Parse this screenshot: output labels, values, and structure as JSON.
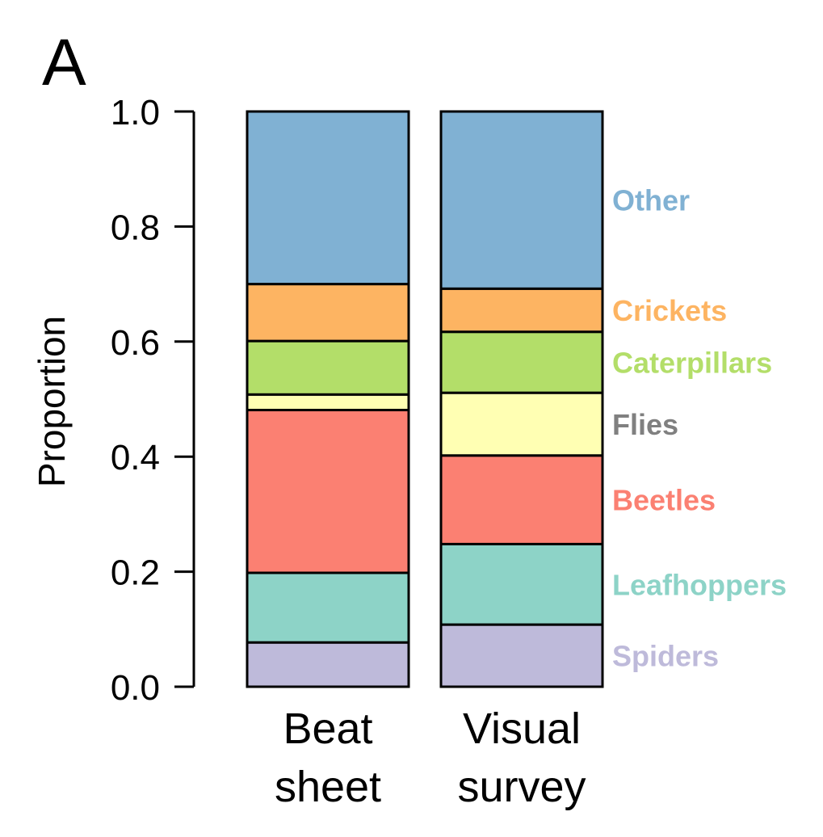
{
  "panel_label": "A",
  "chart_data": {
    "type": "bar",
    "stacked": true,
    "categories": [
      [
        "Beat",
        "sheet"
      ],
      [
        "Visual",
        "survey"
      ]
    ],
    "ylabel": "Proportion",
    "ylim": [
      0,
      1.0
    ],
    "yticks": [
      "0.0",
      "0.2",
      "0.4",
      "0.6",
      "0.8",
      "1.0"
    ],
    "grid": false,
    "legend": "right (inline labels)",
    "series": [
      {
        "name": "Spiders",
        "color": "#BEBADA",
        "label_color": "#BEBADA",
        "values": [
          0.077,
          0.108
        ]
      },
      {
        "name": "Leafhoppers",
        "color": "#8DD3C7",
        "label_color": "#8DD3C7",
        "values": [
          0.121,
          0.14
        ]
      },
      {
        "name": "Beetles",
        "color": "#FB8072",
        "label_color": "#FB8072",
        "values": [
          0.283,
          0.154
        ]
      },
      {
        "name": "Flies",
        "color": "#FFFFB3",
        "label_color": "#808080",
        "values": [
          0.027,
          0.109
        ]
      },
      {
        "name": "Caterpillars",
        "color": "#B3DE69",
        "label_color": "#B3DE69",
        "values": [
          0.093,
          0.106
        ]
      },
      {
        "name": "Crickets",
        "color": "#FDB462",
        "label_color": "#FDB462",
        "values": [
          0.099,
          0.075
        ]
      },
      {
        "name": "Other",
        "color": "#80B1D3",
        "label_color": "#80B1D3",
        "values": [
          0.3,
          0.308
        ]
      }
    ]
  }
}
